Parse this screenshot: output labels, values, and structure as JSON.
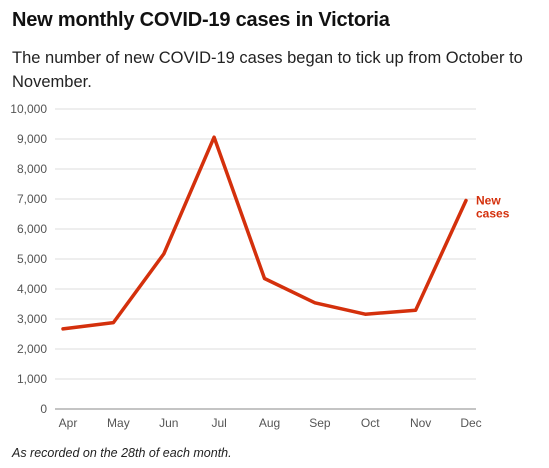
{
  "chart_data": {
    "type": "line",
    "title": "New monthly COVID-19 cases in Victoria",
    "subtitle": "The number of new COVID-19 cases began to tick up from October to November.",
    "note": "As recorded on the 28th of each month.",
    "categories": [
      "Apr",
      "May",
      "Jun",
      "Jul",
      "Aug",
      "Sep",
      "Oct",
      "Nov",
      "Dec"
    ],
    "series": [
      {
        "name": "New cases",
        "name_lines": [
          "New",
          "cases"
        ],
        "color": "#d4300c",
        "values": [
          2670,
          2880,
          5170,
          9060,
          4350,
          3540,
          3160,
          3290,
          6950
        ]
      }
    ],
    "yticks": [
      "0",
      "1,000",
      "2,000",
      "3,000",
      "4,000",
      "5,000",
      "6,000",
      "7,000",
      "8,000",
      "9,000",
      "10,000"
    ],
    "ylim": [
      0,
      10000
    ],
    "grid": true,
    "legend": "direct-label-right"
  }
}
